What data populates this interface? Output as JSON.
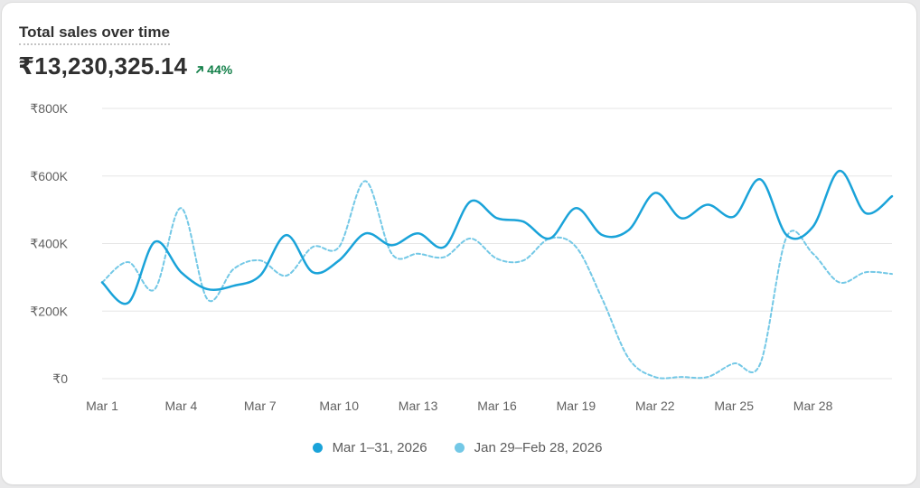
{
  "header": {
    "title": "Total sales over time",
    "total": "₹13,230,325.14",
    "delta": "44%"
  },
  "colors": {
    "current": "#1aa3d9",
    "previous": "#73c8e6",
    "grid": "#e6e6e6",
    "delta": "#14804a"
  },
  "chart_data": {
    "type": "line",
    "title": "Total sales over time",
    "xlabel": "",
    "ylabel": "",
    "ylim": [
      0,
      800000
    ],
    "yticks": [
      {
        "value": 0,
        "label": "₹0"
      },
      {
        "value": 200000,
        "label": "₹200K"
      },
      {
        "value": 400000,
        "label": "₹400K"
      },
      {
        "value": 600000,
        "label": "₹600K"
      },
      {
        "value": 800000,
        "label": "₹800K"
      }
    ],
    "x": [
      1,
      2,
      3,
      4,
      5,
      6,
      7,
      8,
      9,
      10,
      11,
      12,
      13,
      14,
      15,
      16,
      17,
      18,
      19,
      20,
      21,
      22,
      23,
      24,
      25,
      26,
      27,
      28,
      29,
      30,
      31
    ],
    "xticks": [
      {
        "value": 1,
        "label": "Mar 1"
      },
      {
        "value": 4,
        "label": "Mar 4"
      },
      {
        "value": 7,
        "label": "Mar 7"
      },
      {
        "value": 10,
        "label": "Mar 10"
      },
      {
        "value": 13,
        "label": "Mar 13"
      },
      {
        "value": 16,
        "label": "Mar 16"
      },
      {
        "value": 19,
        "label": "Mar 19"
      },
      {
        "value": 22,
        "label": "Mar 22"
      },
      {
        "value": 25,
        "label": "Mar 25"
      },
      {
        "value": 28,
        "label": "Mar 28"
      }
    ],
    "grid": true,
    "legend_position": "bottom-center",
    "series": [
      {
        "name": "Mar 1–31, 2026",
        "style": "solid",
        "values": [
          285000,
          225000,
          405000,
          315000,
          265000,
          275000,
          305000,
          425000,
          315000,
          350000,
          430000,
          395000,
          430000,
          390000,
          525000,
          475000,
          465000,
          415000,
          505000,
          425000,
          440000,
          550000,
          475000,
          515000,
          480000,
          590000,
          425000,
          450000,
          615000,
          490000,
          540000
        ]
      },
      {
        "name": "Jan 29–Feb 28, 2026",
        "style": "dashed",
        "values": [
          285000,
          345000,
          265000,
          505000,
          235000,
          325000,
          350000,
          305000,
          390000,
          390000,
          585000,
          370000,
          370000,
          360000,
          415000,
          355000,
          350000,
          415000,
          390000,
          235000,
          60000,
          5000,
          5000,
          5000,
          45000,
          45000,
          420000,
          370000,
          285000,
          315000,
          310000
        ]
      }
    ]
  }
}
